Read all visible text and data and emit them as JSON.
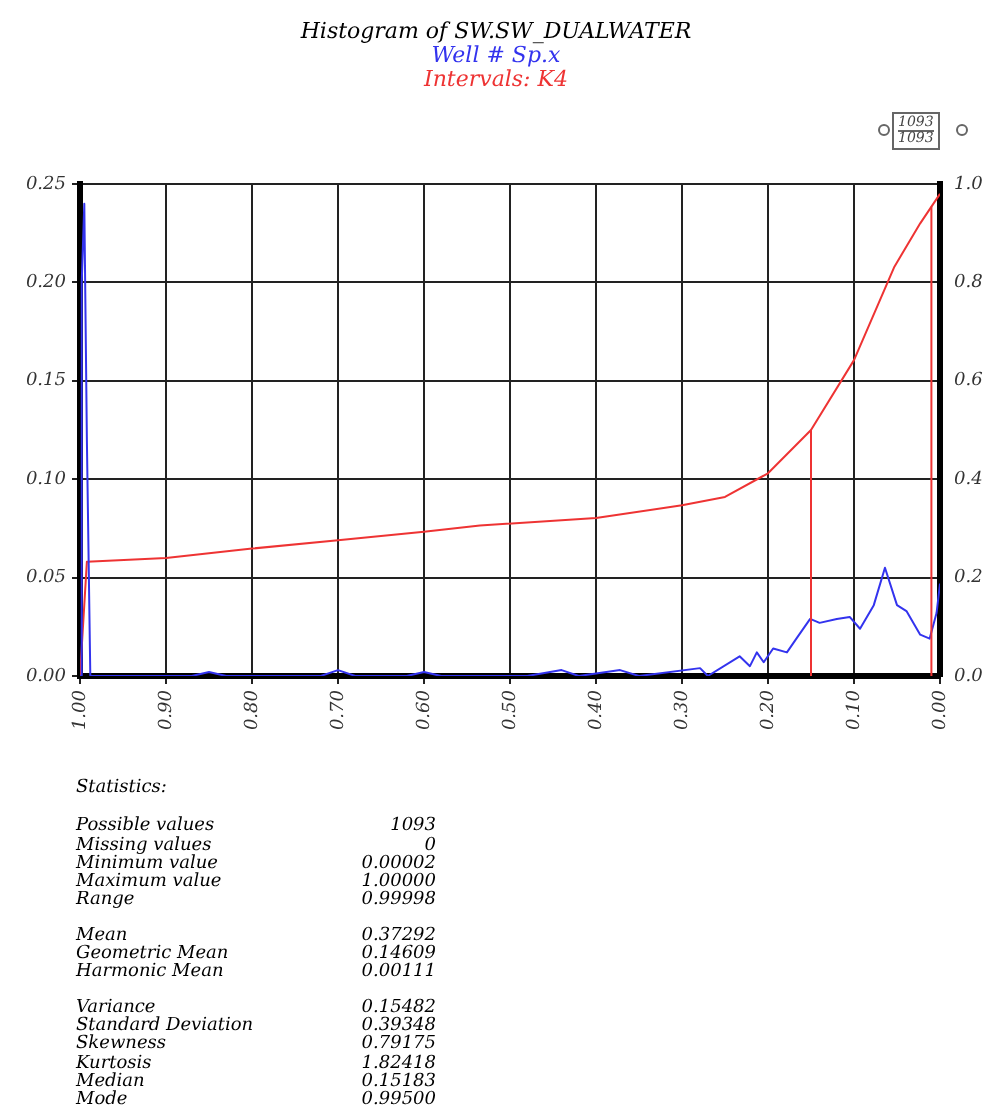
{
  "chart_data": {
    "type": "line",
    "title": "Histogram of SW.SW_DUALWATER",
    "subtitle": "Well # Sp.x",
    "annotations": [
      "Intervals: K4",
      "1093",
      "1093",
      "Statistics:",
      "Possible values",
      "1093",
      "Missing values",
      "0",
      "Minimum value",
      "0.00002",
      "Maximum value",
      "1.00000",
      "Range",
      "0.99998",
      "Mean",
      "0.37292",
      "Geometric Mean",
      "0.14609",
      "Harmonic Mean",
      "0.00111",
      "Variance",
      "0.15482",
      "Standard Deviation",
      "0.39348",
      "Skewness",
      "0.79175",
      "Kurtosis",
      "1.82418",
      "Median",
      "0.15183",
      "Mode",
      "0.99500"
    ],
    "series": [
      {
        "color": "#3333ee",
        "x": [
          1.0,
          0.998,
          0.995,
          0.992,
          0.988,
          0.95,
          0.87,
          0.85,
          0.83,
          0.72,
          0.7,
          0.68,
          0.62,
          0.6,
          0.58,
          0.53,
          0.48,
          0.44,
          0.42,
          0.372,
          0.35,
          0.279,
          0.27,
          0.233,
          0.221,
          0.213,
          0.205,
          0.194,
          0.178,
          0.167,
          0.151,
          0.14,
          0.12,
          0.105,
          0.093,
          0.077,
          0.064,
          0.05,
          0.039,
          0.023,
          0.012,
          0.004,
          0.0
        ],
        "values": [
          0.0,
          0.2,
          0.24,
          0.12,
          0.0,
          0.0,
          0.0,
          0.002,
          0.0,
          0.0,
          0.003,
          0.0,
          0.0,
          0.002,
          0.0,
          0.0,
          0.0,
          0.003,
          0.0,
          0.003,
          0.0,
          0.004,
          0.0,
          0.01,
          0.005,
          0.012,
          0.007,
          0.014,
          0.012,
          0.019,
          0.029,
          0.027,
          0.029,
          0.03,
          0.024,
          0.036,
          0.055,
          0.036,
          0.033,
          0.021,
          0.019,
          0.032,
          0.047
        ]
      },
      {
        "color": "#ee3333",
        "axis": "y2",
        "x": [
          1.0,
          0.992,
          0.9,
          0.8,
          0.7,
          0.6,
          0.535,
          0.4,
          0.3,
          0.25,
          0.2,
          0.15,
          0.1,
          0.053,
          0.023,
          0.0
        ],
        "values": [
          0.0,
          0.232,
          0.24,
          0.259,
          0.276,
          0.293,
          0.306,
          0.321,
          0.347,
          0.364,
          0.412,
          0.5,
          0.642,
          0.832,
          0.92,
          0.98
        ]
      }
    ],
    "xlim": [
      1,
      0
    ],
    "xticks": [
      {
        "value": 1,
        "label": "1.00"
      },
      {
        "value": 0.9,
        "label": "0.90"
      },
      {
        "value": 0.8,
        "label": "0.80"
      },
      {
        "value": 0.7,
        "label": "0.70"
      },
      {
        "value": 0.6,
        "label": "0.60"
      },
      {
        "value": 0.5,
        "label": "0.50"
      },
      {
        "value": 0.4,
        "label": "0.40"
      },
      {
        "value": 0.3,
        "label": "0.30"
      },
      {
        "value": 0.2,
        "label": "0.20"
      },
      {
        "value": 0.1,
        "label": "0.10"
      },
      {
        "value": 0,
        "label": "0.00"
      }
    ],
    "ylim": [
      0,
      0.25
    ],
    "yticks": [
      {
        "value": 0,
        "label": "0.00"
      },
      0.05,
      {
        "value": 0.1,
        "label": "0.10"
      },
      0.15,
      {
        "value": 0.2,
        "label": "0.20"
      },
      0.25
    ],
    "y2lim": [
      0,
      1
    ],
    "y2ticks": [
      {
        "value": 0,
        "label": "0.0"
      },
      0.2,
      0.4,
      0.6,
      0.8,
      {
        "value": 1,
        "label": "1.0"
      }
    ],
    "ref_lines": [
      {
        "axis": "x",
        "value": 0.15,
        "color": "#ee3333"
      },
      {
        "axis": "x",
        "value": 0.01,
        "color": "#ee3333"
      }
    ],
    "grid": true,
    "legend": false,
    "marker": "none",
    "line_style": "solid"
  }
}
